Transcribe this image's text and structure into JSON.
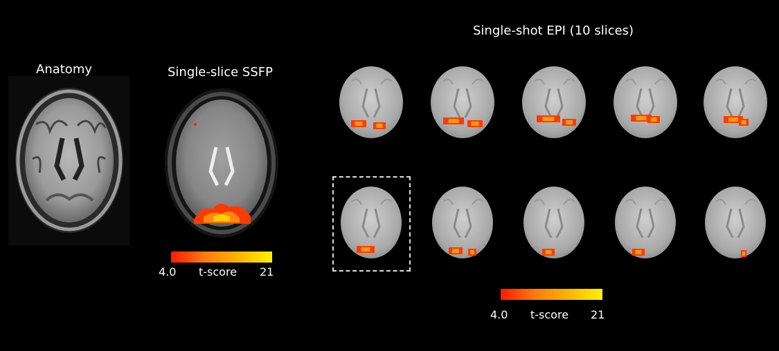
{
  "labels": {
    "anatomy": "Anatomy",
    "ssfp": "Single-slice SSFP",
    "epi": "Single-shot EPI (10 slices)"
  },
  "colorbars": [
    {
      "min_label": "4.0",
      "mid_label": "t-score",
      "max_label": "21"
    },
    {
      "min_label": "4.0",
      "mid_label": "t-score",
      "max_label": "21"
    }
  ],
  "colormap": {
    "low": "#ff1a00",
    "mid": "#ff8a10",
    "high": "#fff200"
  },
  "epi_slice_count": 10,
  "highlighted_slice": 6
}
